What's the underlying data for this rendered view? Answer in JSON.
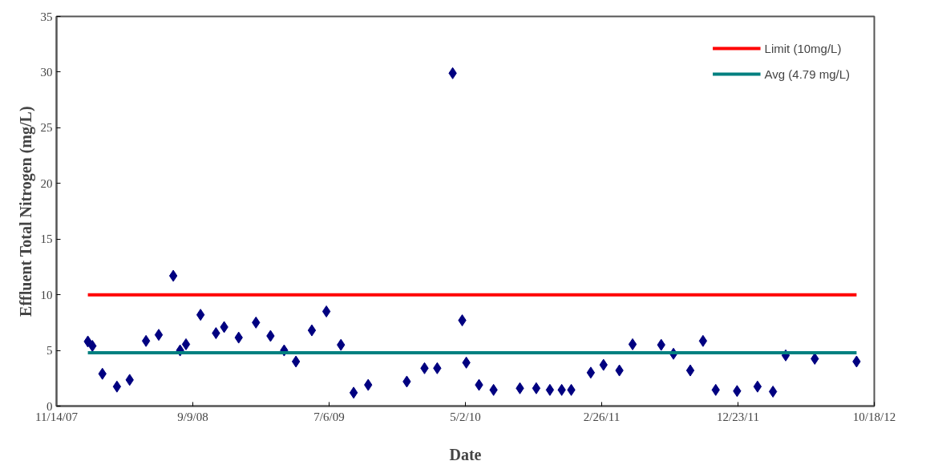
{
  "chart_data": {
    "type": "scatter",
    "xlabel": "Date",
    "ylabel": "Effluent Total Nitrogen (mg/L)",
    "xlim": [
      "2007-11-14",
      "2012-10-18"
    ],
    "xticks": [
      {
        "value": "2007-11-14",
        "label": "11/14/07"
      },
      {
        "value": "2008-09-09",
        "label": "9/9/08"
      },
      {
        "value": "2009-07-06",
        "label": "7/6/09"
      },
      {
        "value": "2010-05-02",
        "label": "5/2/10"
      },
      {
        "value": "2011-02-26",
        "label": "2/26/11"
      },
      {
        "value": "2011-12-23",
        "label": "12/23/11"
      },
      {
        "value": "2012-10-18",
        "label": "10/18/12"
      }
    ],
    "ylim": [
      0,
      35
    ],
    "yticks": [
      0,
      5,
      10,
      15,
      20,
      25,
      30,
      35
    ],
    "grid": false,
    "legend": "top right",
    "series": [
      {
        "marker": "diamond",
        "color": "#000080",
        "x": [
          "2008-01-22",
          "2008-02-01",
          "2008-02-23",
          "2008-03-26",
          "2008-04-23",
          "2008-05-29",
          "2008-06-26",
          "2008-07-28",
          "2008-08-12",
          "2008-08-25",
          "2008-09-26",
          "2008-10-30",
          "2008-11-17",
          "2008-12-19",
          "2009-01-26",
          "2009-02-27",
          "2009-03-29",
          "2009-04-24",
          "2009-05-29",
          "2009-06-30",
          "2009-08-01",
          "2009-08-29",
          "2009-09-30",
          "2009-12-24",
          "2010-02-01",
          "2010-03-01",
          "2010-04-04",
          "2010-04-25",
          "2010-05-04",
          "2010-06-01",
          "2010-07-03",
          "2010-08-30",
          "2010-10-05",
          "2010-11-04",
          "2010-11-30",
          "2010-12-21",
          "2011-02-02",
          "2011-03-02",
          "2011-04-06",
          "2011-05-05",
          "2011-07-07",
          "2011-08-03",
          "2011-09-09",
          "2011-10-07",
          "2011-11-04",
          "2011-12-21",
          "2012-02-04",
          "2012-03-09",
          "2012-04-06",
          "2012-06-09",
          "2012-09-09"
        ],
        "values": [
          5.8,
          5.4,
          2.9,
          1.75,
          2.35,
          5.85,
          6.4,
          11.7,
          5.0,
          5.55,
          8.2,
          6.55,
          7.1,
          6.15,
          7.5,
          6.3,
          5.0,
          4.0,
          6.8,
          8.5,
          5.5,
          1.2,
          1.9,
          2.2,
          3.4,
          3.4,
          29.9,
          7.7,
          3.9,
          1.9,
          1.45,
          1.6,
          1.6,
          1.45,
          1.45,
          1.45,
          3.0,
          3.7,
          3.2,
          5.55,
          5.5,
          4.7,
          3.2,
          5.85,
          1.45,
          1.35,
          1.75,
          1.3,
          4.55,
          4.25,
          4.0
        ]
      },
      {
        "type": "line",
        "name": "Limit (10mg/L)",
        "marker": "none",
        "color": "#ff0000",
        "x": [
          "2008-01-22",
          "2012-09-09"
        ],
        "values": [
          10,
          10
        ]
      },
      {
        "type": "line",
        "name": "Avg (4.79 mg/L)",
        "marker": "none",
        "color": "#008080",
        "x": [
          "2008-01-22",
          "2012-09-09"
        ],
        "values": [
          4.79,
          4.79
        ]
      }
    ]
  }
}
